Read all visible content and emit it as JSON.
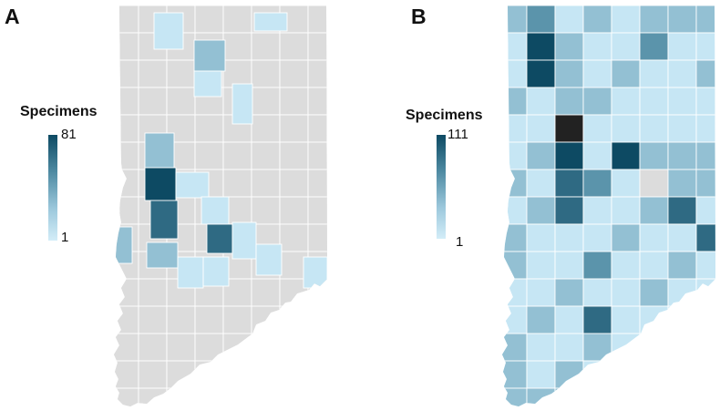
{
  "panels": {
    "a": {
      "letter": "A",
      "legend_title": "Specimens",
      "legend_max": "81",
      "legend_min": "1"
    },
    "b": {
      "letter": "B",
      "legend_title": "Specimens",
      "legend_max": "111",
      "legend_min": "1"
    }
  },
  "colors": {
    "no_data": "#dcdcdc",
    "scale_low": "#d3edf8",
    "scale_high": "#0d4a63",
    "outlier": "#222222",
    "county_border": "#ffffff"
  }
}
